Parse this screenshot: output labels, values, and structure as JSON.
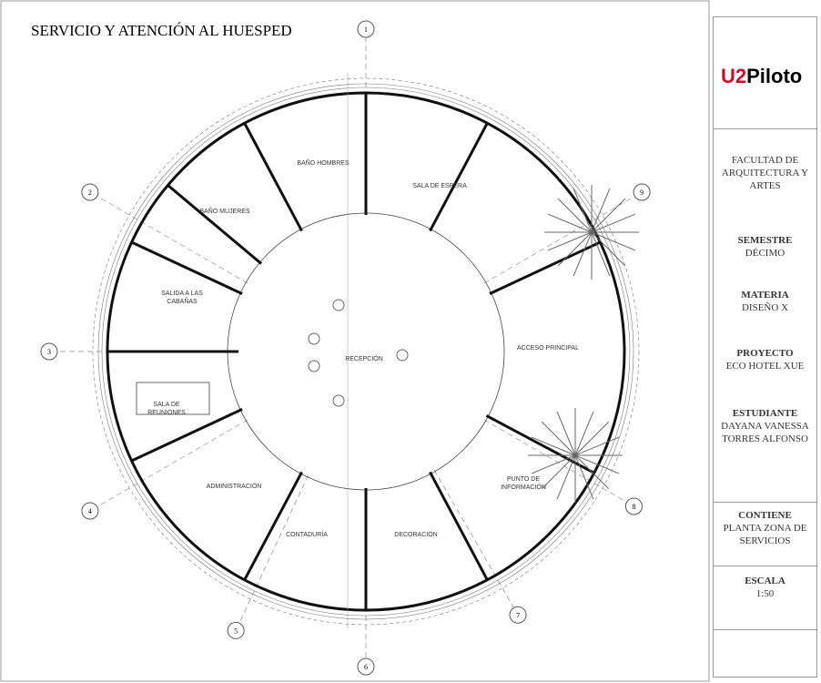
{
  "title": "SERVICIO Y ATENCIÓN AL HUESPED",
  "rooms": [
    "BAÑO HOMBRES",
    "SALA DE ESPERA",
    "BAÑO MUJERES",
    "SALIDA A LAS CABAÑAS",
    "RECEPCIÓN",
    "ACCESO PRINCIPAL",
    "SALA DE REUNIONES",
    "ADMINISTRACIÓN",
    "CONTADURÍA",
    "DECORACIÓN",
    "PUNTO DE INFORMACIÓN"
  ],
  "axes": [
    "1",
    "2",
    "3",
    "4",
    "5",
    "6",
    "7",
    "8",
    "9"
  ],
  "panel": {
    "logo": {
      "mark": "U2",
      "name": "Piloto"
    },
    "faculty": "FACULTAD DE ARQUITECTURA Y ARTES",
    "sections": [
      {
        "title": "SEMESTRE",
        "value": "DÉCIMO"
      },
      {
        "title": "MATERIA",
        "value": "DISEÑO X"
      },
      {
        "title": "PROYECTO",
        "value": "ECO HOTEL XUE"
      },
      {
        "title": "ESTUDIANTE",
        "value": "DAYANA VANESSA TORRES ALFONSO"
      },
      {
        "title": "CONTIENE",
        "value": "PLANTA ZONA DE SERVICIOS"
      },
      {
        "title": "ESCALA",
        "value": "1:50"
      }
    ]
  }
}
